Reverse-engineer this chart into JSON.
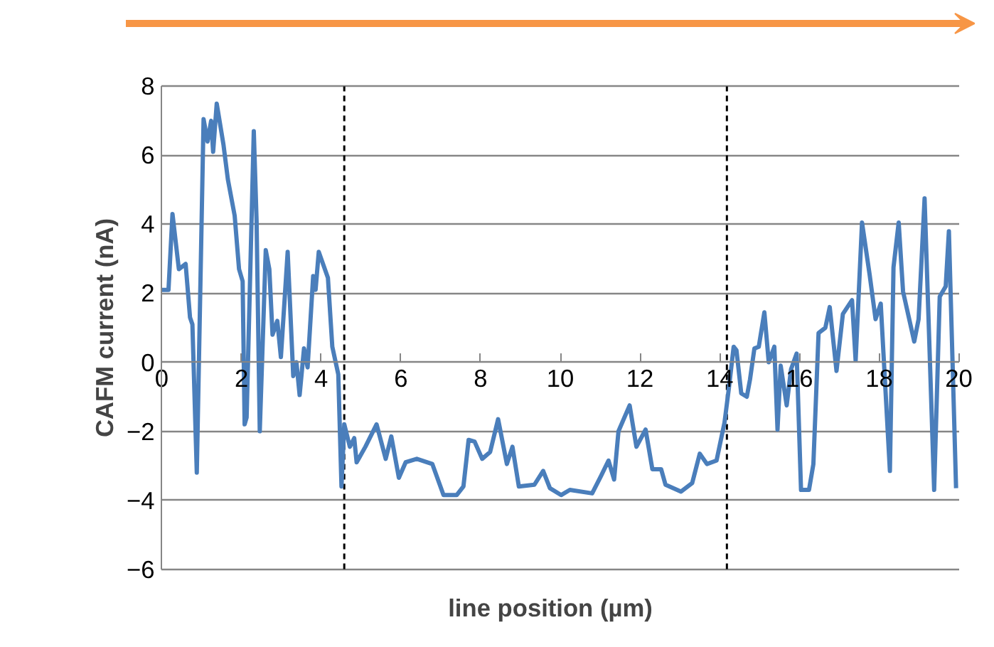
{
  "chart_data": {
    "type": "line",
    "xlabel": "line position (µm)",
    "ylabel": "CAFM current (nA)",
    "xlim": [
      0,
      20
    ],
    "ylim": [
      -6,
      8
    ],
    "xticks": [
      0,
      2,
      4,
      6,
      8,
      10,
      12,
      14,
      16,
      18,
      20
    ],
    "yticks": [
      -6,
      -4,
      -2,
      0,
      2,
      4,
      6,
      8
    ],
    "grid": "y",
    "line_style": "solid",
    "marker": "none",
    "ref_lines": [
      {
        "axis": "x",
        "value": 4.58,
        "color": "#000000",
        "line_style": "dashed"
      },
      {
        "axis": "x",
        "value": 14.18,
        "color": "#000000",
        "line_style": "dashed"
      }
    ],
    "series": [
      {
        "color": "#4a7ebb",
        "x": [
          0,
          0.17,
          0.27,
          0.43,
          0.6,
          0.71,
          0.77,
          0.88,
          1.05,
          1.15,
          1.24,
          1.29,
          1.38,
          1.55,
          1.66,
          1.83,
          1.94,
          2.03,
          2.08,
          2.13,
          2.31,
          2.38,
          2.46,
          2.61,
          2.7,
          2.78,
          2.9,
          2.99,
          3.16,
          3.3,
          3.38,
          3.46,
          3.57,
          3.66,
          3.8,
          3.86,
          3.94,
          4.17,
          4.28,
          4.43,
          4.51,
          4.58,
          4.72,
          4.83,
          4.89,
          5.11,
          5.39,
          5.62,
          5.76,
          5.95,
          6.12,
          6.4,
          6.79,
          7.07,
          7.4,
          7.57,
          7.7,
          7.85,
          8.04,
          8.24,
          8.44,
          8.66,
          8.8,
          8.96,
          9.35,
          9.57,
          9.74,
          10.02,
          10.24,
          10.8,
          11.02,
          11.21,
          11.35,
          11.46,
          11.74,
          11.91,
          12.14,
          12.31,
          12.53,
          12.64,
          13.03,
          13.31,
          13.5,
          13.68,
          13.92,
          14.12,
          14.23,
          14.35,
          14.42,
          14.54,
          14.68,
          14.76,
          14.87,
          14.98,
          15.12,
          15.23,
          15.37,
          15.45,
          15.53,
          15.68,
          15.79,
          15.93,
          16.04,
          16.24,
          16.35,
          16.48,
          16.65,
          16.76,
          16.93,
          17.09,
          17.32,
          17.41,
          17.57,
          17.76,
          17.91,
          18.04,
          18.27,
          18.36,
          18.49,
          18.6,
          18.88,
          18.99,
          19.14,
          19.38,
          19.52,
          19.67,
          19.75,
          19.93
        ],
        "values": [
          2.1,
          2.1,
          4.3,
          2.7,
          2.85,
          1.3,
          1.1,
          -3.2,
          7.05,
          6.4,
          7.0,
          6.1,
          7.5,
          6.3,
          5.3,
          4.25,
          2.7,
          2.35,
          -1.8,
          -1.6,
          6.7,
          4.1,
          -2.0,
          3.25,
          2.7,
          0.8,
          1.2,
          0.15,
          3.2,
          -0.4,
          0.0,
          -0.95,
          0.4,
          -0.15,
          2.5,
          2.1,
          3.2,
          2.45,
          0.45,
          -0.35,
          -3.6,
          -1.8,
          -2.45,
          -2.2,
          -2.9,
          -2.45,
          -1.8,
          -2.8,
          -2.15,
          -3.35,
          -2.9,
          -2.8,
          -2.95,
          -3.85,
          -3.85,
          -3.6,
          -2.25,
          -2.3,
          -2.8,
          -2.6,
          -1.65,
          -2.95,
          -2.45,
          -3.6,
          -3.55,
          -3.15,
          -3.65,
          -3.85,
          -3.7,
          -3.8,
          -3.3,
          -2.85,
          -3.4,
          -2.0,
          -1.25,
          -2.45,
          -1.95,
          -3.1,
          -3.1,
          -3.55,
          -3.75,
          -3.5,
          -2.65,
          -2.95,
          -2.85,
          -1.75,
          -0.75,
          0.45,
          0.35,
          -0.9,
          -1.0,
          -0.5,
          0.4,
          0.45,
          1.45,
          0.0,
          0.45,
          -1.95,
          -0.1,
          -1.25,
          -0.2,
          0.25,
          -3.7,
          -3.7,
          -2.95,
          0.85,
          1.0,
          1.6,
          -0.25,
          1.4,
          1.8,
          0.05,
          4.05,
          2.55,
          1.25,
          1.7,
          -3.15,
          2.75,
          4.05,
          2.05,
          0.6,
          1.25,
          4.75,
          -3.7,
          1.9,
          2.2,
          3.8,
          -3.65
        ]
      }
    ]
  }
}
